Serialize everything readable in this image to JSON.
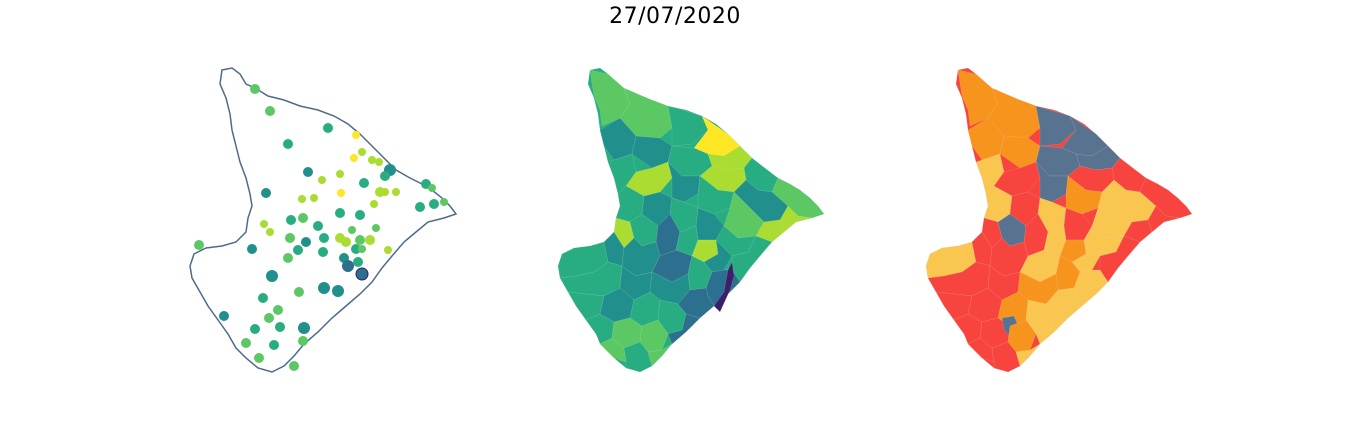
{
  "figure": {
    "title": "27/07/2020"
  },
  "colors": {
    "outline": "#4d6b8a",
    "viridis": [
      "#3b1f6b",
      "#2c6f8e",
      "#21908d",
      "#27ad81",
      "#5cc863",
      "#aadc32",
      "#fde725"
    ],
    "category": [
      "#57738f",
      "#f7941d",
      "#f7443e",
      "#f9c74f"
    ],
    "background": "#ffffff"
  },
  "panels": [
    {
      "kind": "points",
      "outline": true
    },
    {
      "kind": "choropleth",
      "palette": "viridis"
    },
    {
      "kind": "choropleth",
      "palette": "category"
    }
  ]
}
